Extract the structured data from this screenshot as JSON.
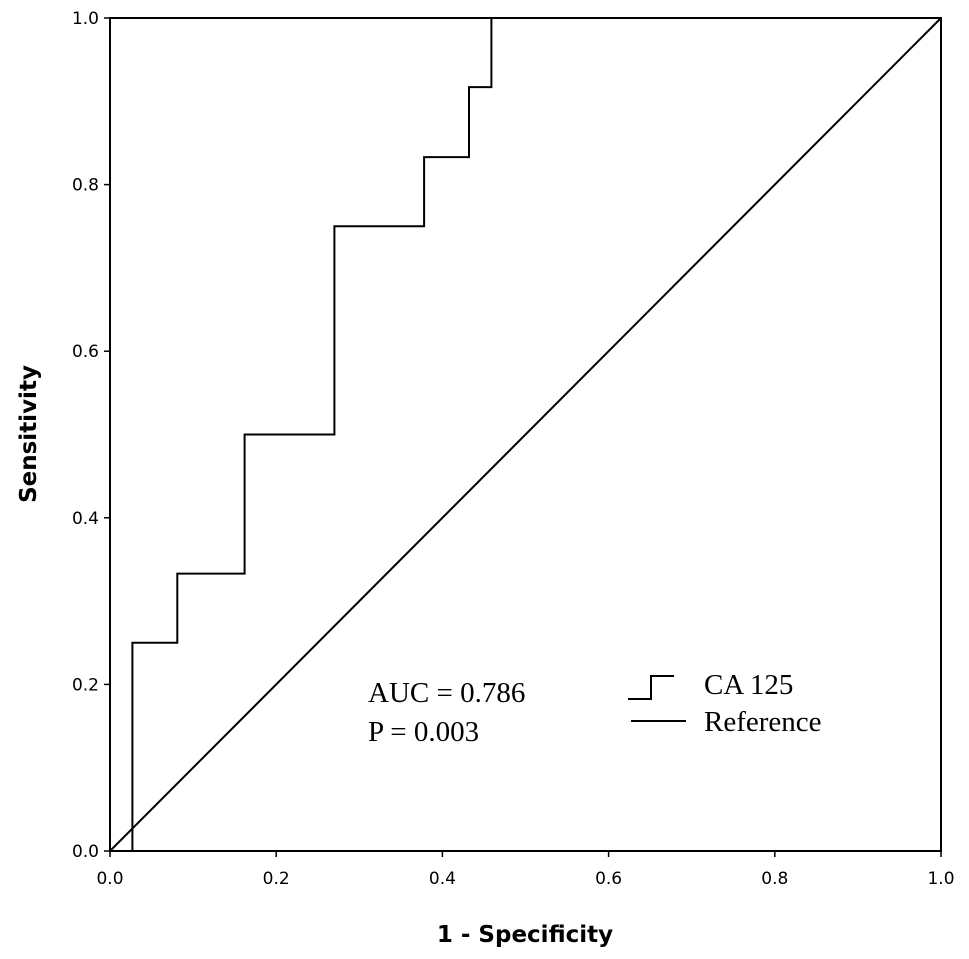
{
  "chart_data": {
    "type": "line",
    "xlabel": "1 - Specificity",
    "ylabel": "Sensitivity",
    "xlim": [
      0,
      1
    ],
    "ylim": [
      0,
      1
    ],
    "x_ticks": [
      "0.0",
      "0.2",
      "0.4",
      "0.6",
      "0.8",
      "1.0"
    ],
    "y_ticks": [
      "0.0",
      "0.2",
      "0.4",
      "0.6",
      "0.8",
      "1.0"
    ],
    "grid": false,
    "legend_position": "right",
    "series": [
      {
        "name": "CA 125",
        "style": "step",
        "color": "#000000",
        "x": [
          0,
          0.027,
          0.027,
          0.081,
          0.081,
          0.162,
          0.162,
          0.27,
          0.27,
          0.378,
          0.378,
          0.432,
          0.432,
          0.459,
          0.459,
          1.0
        ],
        "y": [
          0,
          0,
          0.25,
          0.25,
          0.333,
          0.333,
          0.5,
          0.5,
          0.75,
          0.75,
          0.833,
          0.833,
          0.917,
          0.917,
          1.0,
          1.0
        ]
      },
      {
        "name": "Reference",
        "style": "line",
        "color": "#000000",
        "x": [
          0,
          1
        ],
        "y": [
          0,
          1
        ]
      }
    ],
    "annotations": {
      "auc": "AUC = 0.786",
      "p": "P = 0.003"
    }
  }
}
